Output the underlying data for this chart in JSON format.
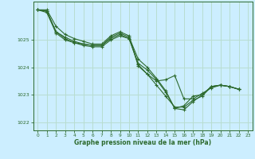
{
  "title": "Graphe pression niveau de la mer (hPa)",
  "background_color": "#cceeff",
  "grid_color": "#b8ddd0",
  "line_color": "#2d6a2d",
  "marker_color": "#2d6a2d",
  "xlim": [
    -0.5,
    23.5
  ],
  "ylim": [
    1021.7,
    1026.4
  ],
  "yticks": [
    1022,
    1023,
    1024,
    1025
  ],
  "xticks": [
    0,
    1,
    2,
    3,
    4,
    5,
    6,
    7,
    8,
    9,
    10,
    11,
    12,
    13,
    14,
    15,
    16,
    17,
    18,
    19,
    20,
    21,
    22,
    23
  ],
  "series": [
    {
      "x": [
        0,
        1,
        2,
        3,
        4,
        5,
        6,
        7,
        8,
        9,
        10,
        11,
        12,
        13,
        14,
        15,
        16,
        17,
        18,
        19,
        20,
        21,
        22
      ],
      "y": [
        1026.1,
        1026.1,
        1025.5,
        1025.2,
        1025.05,
        1024.95,
        1024.85,
        1024.85,
        1025.15,
        1025.3,
        1025.15,
        1024.05,
        1023.75,
        1023.35,
        1022.95,
        1022.55,
        1022.55,
        1022.8,
        1022.95,
        1023.3,
        1023.35,
        1023.3,
        1023.2
      ]
    },
    {
      "x": [
        0,
        1,
        2,
        3,
        4,
        5,
        6,
        7,
        8,
        9,
        10,
        11,
        12,
        13,
        14,
        15,
        16,
        17,
        18,
        19,
        20,
        21,
        22
      ],
      "y": [
        1026.1,
        1026.05,
        1025.3,
        1025.1,
        1024.95,
        1024.85,
        1024.8,
        1024.8,
        1025.1,
        1025.25,
        1025.1,
        1024.3,
        1024.0,
        1023.6,
        1023.15,
        1022.5,
        1022.45,
        1022.75,
        1023.0,
        1023.3,
        1023.35,
        1023.3,
        1023.2
      ]
    },
    {
      "x": [
        0,
        1,
        2,
        3,
        4,
        5,
        6,
        7,
        8,
        9,
        10,
        11,
        12,
        13,
        14,
        15,
        16,
        17,
        18,
        19,
        20,
        21,
        22
      ],
      "y": [
        1026.1,
        1026.05,
        1025.3,
        1025.05,
        1024.9,
        1024.85,
        1024.8,
        1024.8,
        1025.05,
        1025.2,
        1025.05,
        1024.15,
        1023.9,
        1023.55,
        1023.1,
        1022.5,
        1022.6,
        1022.95,
        1023.0,
        1023.3,
        1023.35,
        1023.3,
        1023.2
      ]
    },
    {
      "x": [
        0,
        1,
        2,
        3,
        4,
        5,
        6,
        7,
        8,
        9,
        10,
        11,
        12,
        13,
        14,
        15,
        16,
        17,
        18,
        19,
        20,
        21,
        22
      ],
      "y": [
        1026.1,
        1026.0,
        1025.25,
        1025.0,
        1024.9,
        1024.8,
        1024.75,
        1024.75,
        1025.0,
        1025.15,
        1025.05,
        1024.1,
        1023.75,
        1023.5,
        1023.55,
        1023.7,
        1022.85,
        1022.85,
        1023.05,
        1023.25,
        1023.35,
        1023.3,
        1023.2
      ]
    }
  ]
}
